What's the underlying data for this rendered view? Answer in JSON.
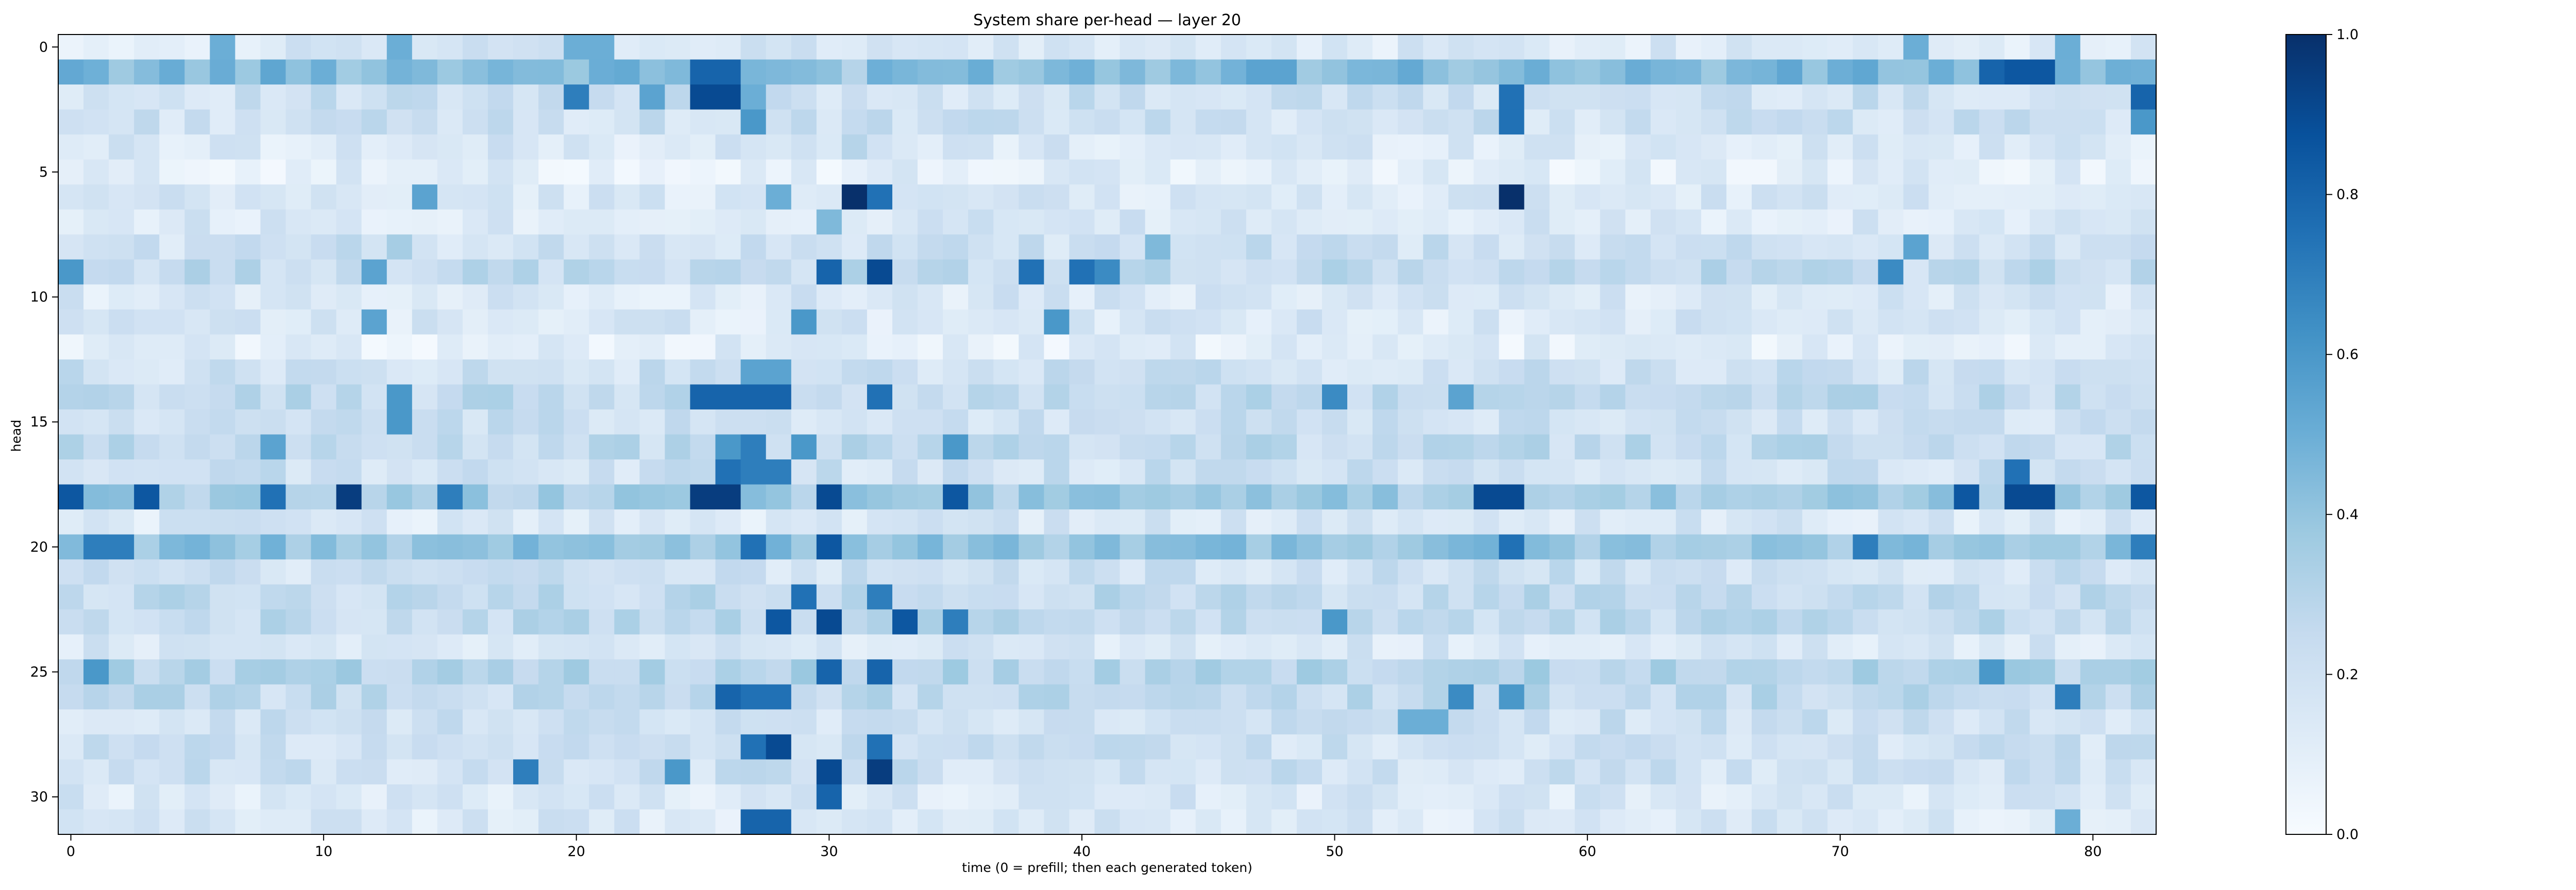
{
  "chart_data": {
    "type": "heatmap",
    "title": "System share per-head — layer 20",
    "xlabel": "time (0 = prefill; then each generated token)",
    "ylabel": "head",
    "x_range": [
      0,
      82
    ],
    "y_range": [
      0,
      31
    ],
    "x_ticks": [
      0,
      10,
      20,
      30,
      40,
      50,
      60,
      70,
      80
    ],
    "y_ticks": [
      0,
      5,
      10,
      15,
      20,
      25,
      30
    ],
    "colormap": "Blues",
    "colorbar": {
      "min": 0.0,
      "max": 1.0,
      "ticks": [
        0.0,
        0.2,
        0.4,
        0.6,
        0.8,
        1.0
      ]
    },
    "grid": false,
    "cols": 83,
    "rows": 32,
    "cell_values_note": "values estimated from colormap; rows = heads 0–31, cols = time 0–82",
    "row_profiles": [
      {
        "head": 0,
        "base": 0.15,
        "peaks": {
          "6": 0.5,
          "13": 0.5,
          "20": 0.5,
          "21": 0.5,
          "73": 0.5,
          "79": 0.5
        }
      },
      {
        "head": 1,
        "base": 0.45,
        "peaks": {
          "25": 0.8,
          "26": 0.8,
          "31": 0.3,
          "47": 0.55,
          "48": 0.55,
          "76": 0.8,
          "77": 0.85,
          "78": 0.85
        }
      },
      {
        "head": 2,
        "base": 0.2,
        "peaks": {
          "20": 0.7,
          "23": 0.55,
          "25": 0.9,
          "26": 0.9,
          "27": 0.5,
          "57": 0.75,
          "82": 0.8
        }
      },
      {
        "head": 3,
        "base": 0.2,
        "peaks": {
          "27": 0.6,
          "57": 0.75,
          "82": 0.6
        }
      },
      {
        "head": 4,
        "base": 0.15,
        "peaks": {
          "31": 0.3
        }
      },
      {
        "head": 5,
        "base": 0.1,
        "peaks": {}
      },
      {
        "head": 6,
        "base": 0.15,
        "peaks": {
          "14": 0.55,
          "28": 0.5,
          "31": 1.0,
          "32": 0.75,
          "57": 1.0
        }
      },
      {
        "head": 7,
        "base": 0.15,
        "peaks": {
          "30": 0.45
        }
      },
      {
        "head": 8,
        "base": 0.2,
        "peaks": {
          "13": 0.35,
          "43": 0.45,
          "73": 0.55
        }
      },
      {
        "head": 9,
        "base": 0.25,
        "peaks": {
          "0": 0.6,
          "12": 0.55,
          "30": 0.8,
          "32": 0.9,
          "38": 0.75,
          "40": 0.75,
          "41": 0.65,
          "72": 0.65
        }
      },
      {
        "head": 10,
        "base": 0.15,
        "peaks": {}
      },
      {
        "head": 11,
        "base": 0.15,
        "peaks": {
          "12": 0.55,
          "29": 0.6,
          "39": 0.6
        }
      },
      {
        "head": 12,
        "base": 0.1,
        "peaks": {}
      },
      {
        "head": 13,
        "base": 0.2,
        "peaks": {
          "27": 0.55,
          "28": 0.55
        }
      },
      {
        "head": 14,
        "base": 0.25,
        "peaks": {
          "13": 0.6,
          "25": 0.8,
          "26": 0.8,
          "27": 0.8,
          "28": 0.8,
          "32": 0.75,
          "50": 0.65,
          "55": 0.55
        }
      },
      {
        "head": 15,
        "base": 0.2,
        "peaks": {
          "13": 0.6
        }
      },
      {
        "head": 16,
        "base": 0.25,
        "peaks": {
          "8": 0.55,
          "26": 0.6,
          "27": 0.7,
          "29": 0.6,
          "35": 0.6
        }
      },
      {
        "head": 17,
        "base": 0.2,
        "peaks": {
          "26": 0.75,
          "27": 0.7,
          "28": 0.7,
          "77": 0.75
        }
      },
      {
        "head": 18,
        "base": 0.35,
        "peaks": {
          "0": 0.85,
          "3": 0.85,
          "8": 0.75,
          "11": 0.95,
          "15": 0.7,
          "25": 0.95,
          "26": 0.95,
          "30": 0.9,
          "35": 0.85,
          "56": 0.9,
          "57": 0.9,
          "75": 0.85,
          "77": 0.9,
          "78": 0.9,
          "82": 0.85
        }
      },
      {
        "head": 19,
        "base": 0.15,
        "peaks": {}
      },
      {
        "head": 20,
        "base": 0.4,
        "peaks": {
          "1": 0.7,
          "2": 0.7,
          "27": 0.75,
          "30": 0.85,
          "57": 0.75,
          "71": 0.7,
          "82": 0.7
        }
      },
      {
        "head": 21,
        "base": 0.2,
        "peaks": {}
      },
      {
        "head": 22,
        "base": 0.25,
        "peaks": {
          "29": 0.75,
          "32": 0.7
        }
      },
      {
        "head": 23,
        "base": 0.25,
        "peaks": {
          "28": 0.85,
          "30": 0.9,
          "33": 0.85,
          "35": 0.7,
          "50": 0.6
        }
      },
      {
        "head": 24,
        "base": 0.15,
        "peaks": {}
      },
      {
        "head": 25,
        "base": 0.3,
        "peaks": {
          "1": 0.6,
          "30": 0.8,
          "32": 0.8,
          "76": 0.6
        }
      },
      {
        "head": 26,
        "base": 0.25,
        "peaks": {
          "26": 0.8,
          "27": 0.75,
          "28": 0.75,
          "55": 0.65,
          "57": 0.6,
          "79": 0.7
        }
      },
      {
        "head": 27,
        "base": 0.2,
        "peaks": {
          "53": 0.5,
          "54": 0.5
        }
      },
      {
        "head": 28,
        "base": 0.2,
        "peaks": {
          "27": 0.75,
          "28": 0.9,
          "32": 0.75
        }
      },
      {
        "head": 29,
        "base": 0.2,
        "peaks": {
          "18": 0.7,
          "24": 0.6,
          "30": 0.9,
          "32": 0.95
        }
      },
      {
        "head": 30,
        "base": 0.15,
        "peaks": {
          "30": 0.8
        }
      },
      {
        "head": 31,
        "base": 0.15,
        "peaks": {
          "27": 0.8,
          "28": 0.8,
          "79": 0.5
        }
      }
    ]
  }
}
